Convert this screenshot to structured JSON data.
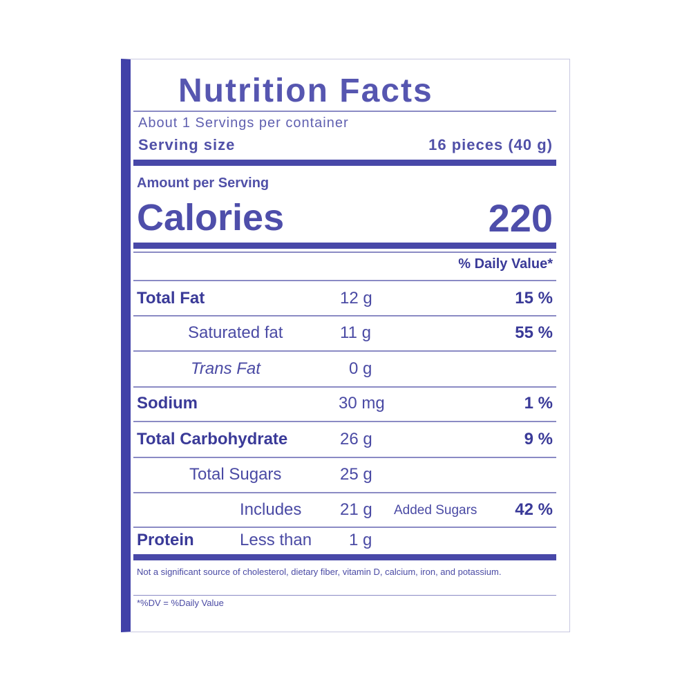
{
  "title": "Nutrition Facts",
  "servings": "About 1 Servings per container",
  "serving_size": {
    "label": "Serving size",
    "value": "16 pieces (40 g)"
  },
  "amount_per_serving": "Amount per Serving",
  "calories": {
    "label": "Calories",
    "value": "220"
  },
  "dv_header": "% Daily Value*",
  "rows": [
    {
      "name": "Total Fat",
      "amount": "12 g",
      "dv": "15 %"
    },
    {
      "name": "Saturated fat",
      "amount": "11 g",
      "dv": "55 %"
    },
    {
      "name": "Trans Fat",
      "amount": "0 g"
    },
    {
      "name": "Sodium",
      "amount": "30 mg",
      "dv": "1 %"
    },
    {
      "name": "Total Carbohydrate",
      "amount": "26 g",
      "dv": "9 %"
    },
    {
      "name": "Total Sugars",
      "amount": "25 g"
    },
    {
      "name": "Includes",
      "amount": "21 g",
      "extra": "Added Sugars",
      "dv": "42 %"
    },
    {
      "name": "Protein",
      "prefix": "Less than",
      "amount": "1 g"
    }
  ],
  "footnote": "Not a significant source of cholesterol, dietary fiber, vitamin D, calcium, iron, and potassium.",
  "dv_note": "*%DV = %Daily Value"
}
